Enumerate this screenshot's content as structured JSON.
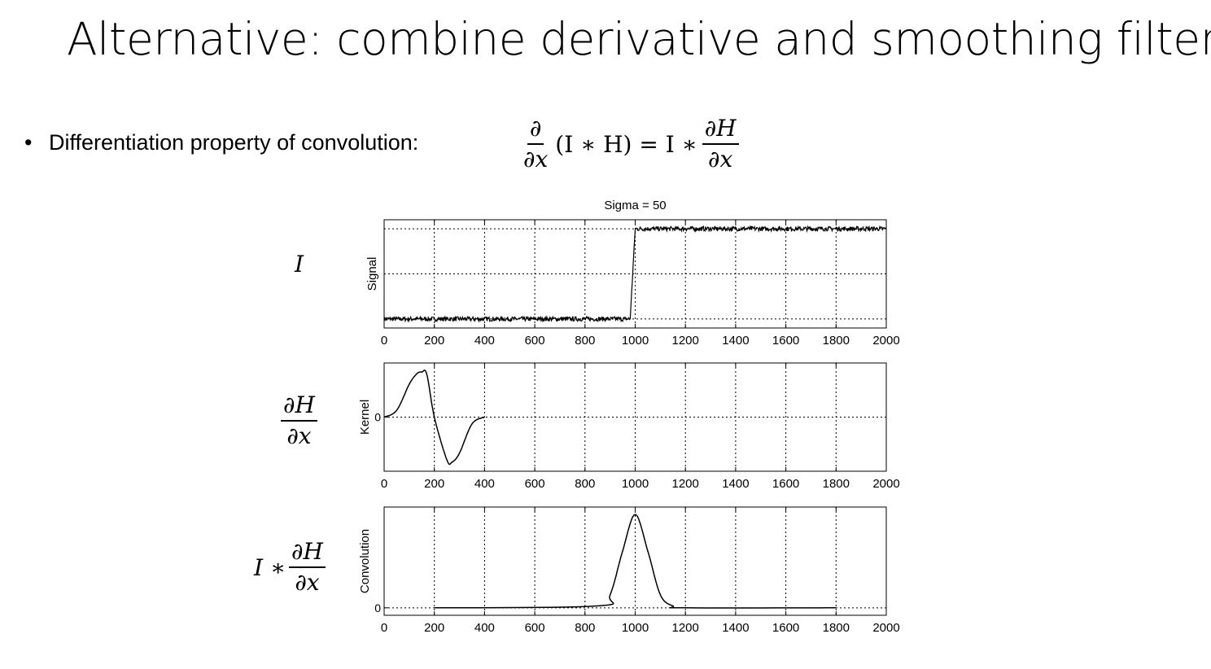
{
  "slide": {
    "title": "Alternative: combine derivative and smoothing filter",
    "bullet": "Differentiation property of convolution:"
  },
  "formula": {
    "lhs_num": "∂",
    "lhs_den": "∂x",
    "middle": "(I ∗ H) = I ∗",
    "rhs_num": "∂H",
    "rhs_den": "∂x"
  },
  "row_labels": {
    "signal": "I",
    "kernel_num": "∂H",
    "kernel_den": "∂x",
    "conv_prefix": "I ∗",
    "conv_num": "∂H",
    "conv_den": "∂x"
  },
  "chart_data": [
    {
      "type": "line",
      "title": "Sigma = 50",
      "ylabel": "Signal",
      "xlim": [
        0,
        2000
      ],
      "xticks": [
        0,
        200,
        400,
        600,
        800,
        1000,
        1200,
        1400,
        1600,
        1800,
        2000
      ],
      "xtick_labels": [
        "0",
        "200",
        "400",
        "600",
        "800",
        "1000",
        "1200",
        "1400",
        "1600",
        "1800",
        "2000"
      ],
      "yticks": [],
      "ylim": [
        -0.1,
        1.1
      ],
      "grid": true,
      "series": [
        {
          "x": [
            0,
            980,
            1000,
            2000
          ],
          "y": [
            0,
            0,
            1,
            1
          ],
          "noise": 0.025
        }
      ]
    },
    {
      "type": "line",
      "title": "",
      "ylabel": "Kernel",
      "xlim": [
        0,
        2000
      ],
      "xticks": [
        0,
        200,
        400,
        600,
        800,
        1000,
        1200,
        1400,
        1600,
        1800,
        2000
      ],
      "xtick_labels": [
        "0",
        "200",
        "400",
        "600",
        "800",
        "1000",
        "1200",
        "1400",
        "1600",
        "1800",
        "2000"
      ],
      "yticks": [
        0
      ],
      "ytick_labels": [
        "0"
      ],
      "ylim": [
        -1.2,
        1.2
      ],
      "grid": true,
      "series": [
        {
          "x": [
            0,
            50,
            100,
            130,
            150,
            170,
            200,
            250,
            270,
            300,
            350,
            400
          ],
          "y": [
            0,
            0.15,
            0.73,
            0.96,
            1.0,
            0.95,
            0,
            -0.95,
            -1.0,
            -0.8,
            -0.15,
            0
          ]
        }
      ]
    },
    {
      "type": "line",
      "title": "",
      "ylabel": "Convolution",
      "xlim": [
        0,
        2000
      ],
      "xticks": [
        0,
        200,
        400,
        600,
        800,
        1000,
        1200,
        1400,
        1600,
        1800,
        2000
      ],
      "xtick_labels": [
        "0",
        "200",
        "400",
        "600",
        "800",
        "1000",
        "1200",
        "1400",
        "1600",
        "1800",
        "2000"
      ],
      "yticks": [
        0
      ],
      "ytick_labels": [
        "0"
      ],
      "ylim": [
        -0.08,
        1.08
      ],
      "grid": true,
      "series": [
        {
          "x": [
            200,
            850,
            900,
            950,
            1000,
            1050,
            1100,
            1150,
            1200,
            1800
          ],
          "y": [
            0,
            0.02,
            0.14,
            0.61,
            1.0,
            0.61,
            0.14,
            0.02,
            0,
            0
          ]
        }
      ]
    }
  ]
}
